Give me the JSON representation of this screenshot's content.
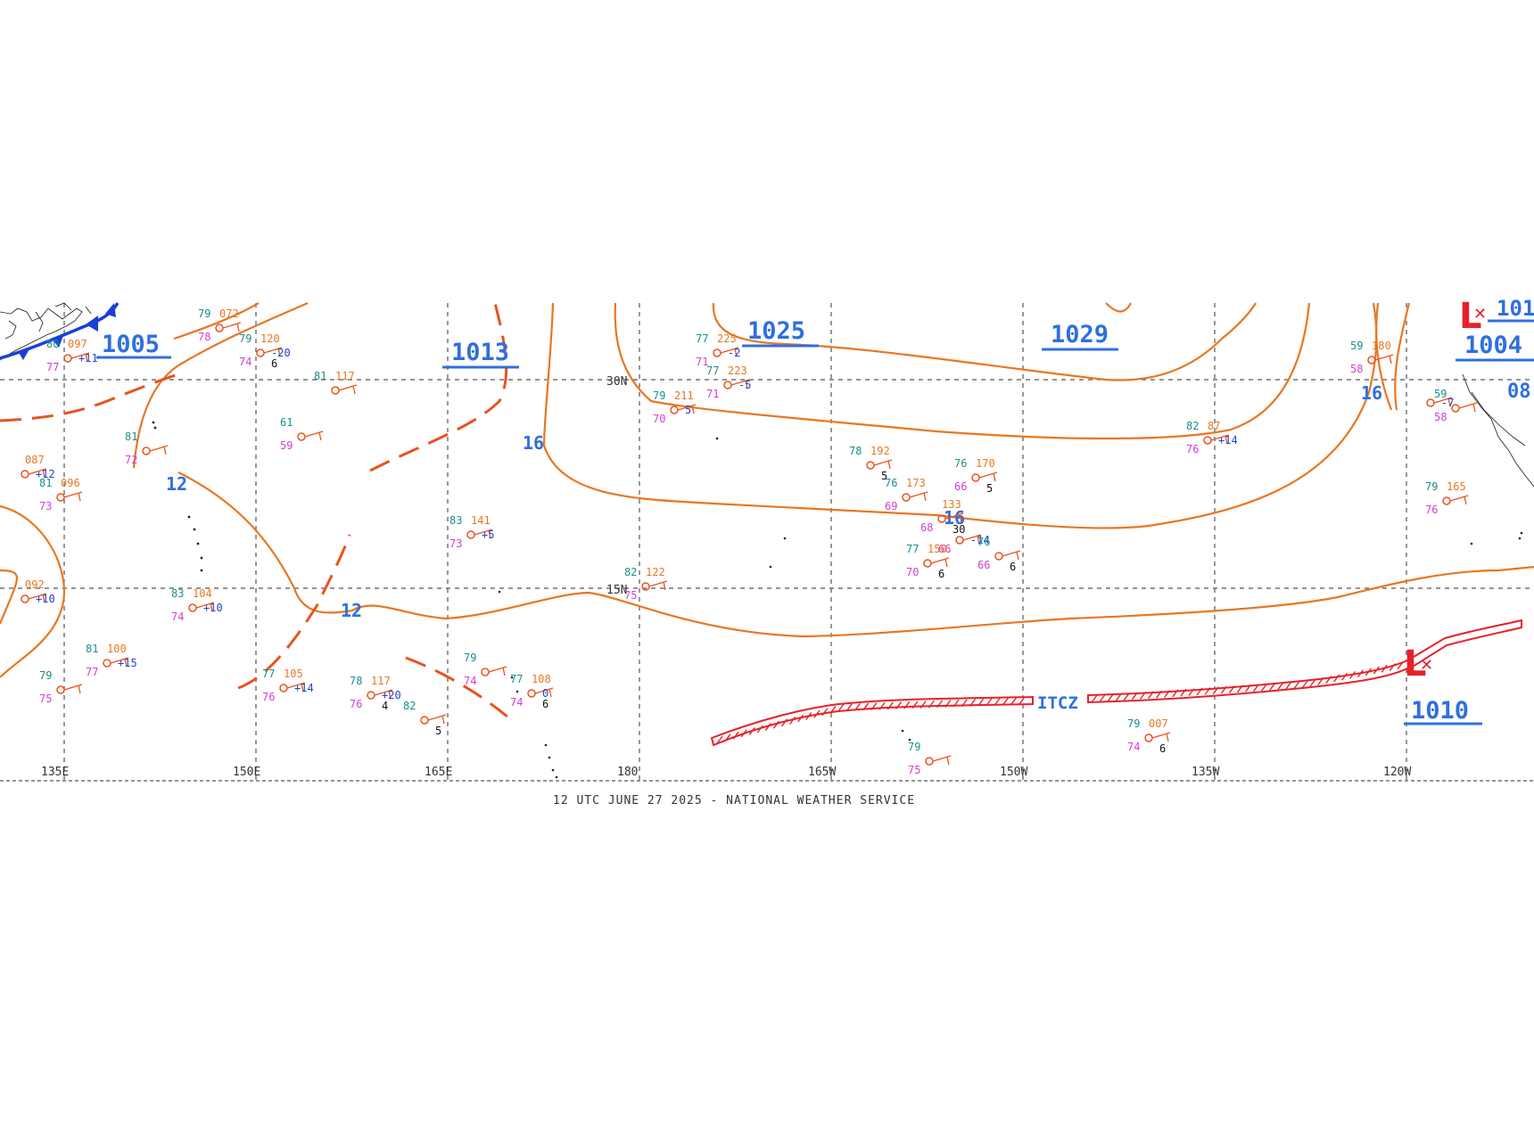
{
  "footer_text": "12 UTC JUNE 27 2025 - NATIONAL WEATHER SERVICE",
  "longitude_labels": [
    "135E",
    "150E",
    "165E",
    "180",
    "165W",
    "150W",
    "135W",
    "120W"
  ],
  "latitude_labels": [
    "30N",
    "15N"
  ],
  "pressure_centers": [
    "1005",
    "1013",
    "1025",
    "1029",
    "1004",
    "1010"
  ],
  "partial_centers": [
    "101",
    "08"
  ],
  "isobar_labels": [
    "12",
    "12",
    "16",
    "16",
    "16",
    "16"
  ],
  "front_label": "ITCZ",
  "low_symbol": "L",
  "colors": {
    "isobar": "#e87722",
    "pressure_label": "#2f6fe0",
    "itcz": "#e8202a",
    "cold_front": "#1a3fd6",
    "grid": "#555555"
  },
  "stations": [
    {
      "t": "79",
      "p": "072",
      "d": "78"
    },
    {
      "t": "79",
      "p": "120",
      "d": "74",
      "v": "6",
      "c": "-20"
    },
    {
      "t": "80",
      "p": "097",
      "d": "77",
      "c": "+11"
    },
    {
      "t": "81",
      "p": "117"
    },
    {
      "t": "61",
      "d": "59"
    },
    {
      "t": "81",
      "d": "72"
    },
    {
      "t": "81",
      "p": "096",
      "d": "73"
    },
    {
      "p": "087",
      "c": "+12"
    },
    {
      "t": "83",
      "p": "141",
      "d": "73",
      "c": "+5"
    },
    {
      "t": "83",
      "p": "104",
      "d": "74",
      "c": "+10"
    },
    {
      "t": "81",
      "p": "100",
      "d": "77",
      "c": "+15"
    },
    {
      "p": "092",
      "c": "+10"
    },
    {
      "t": "79",
      "d": "75"
    },
    {
      "t": "77",
      "p": "105",
      "d": "76",
      "c": "+14"
    },
    {
      "t": "78",
      "p": "117",
      "d": "76",
      "v": "4",
      "c": "+20"
    },
    {
      "t": "82",
      "v": "5"
    },
    {
      "t": "79",
      "d": "74"
    },
    {
      "t": "77",
      "p": "108",
      "d": "74",
      "v": "6",
      "c": "0"
    },
    {
      "t": "77",
      "p": "225",
      "d": "71",
      "c": "-2"
    },
    {
      "t": "77",
      "p": "223",
      "d": "71",
      "c": "-5"
    },
    {
      "t": "79",
      "p": "211",
      "d": "70",
      "c": "5"
    },
    {
      "t": "82",
      "p": "122",
      "d": "75"
    },
    {
      "t": "78",
      "p": "192",
      "v": "5"
    },
    {
      "t": "76",
      "p": "173",
      "d": "69"
    },
    {
      "p": "133",
      "d": "68",
      "v": "30"
    },
    {
      "t": "76",
      "p": "170",
      "d": "66",
      "v": "5"
    },
    {
      "d": "66",
      "c": "-14"
    },
    {
      "t": "77",
      "p": "150",
      "d": "70",
      "v": "6"
    },
    {
      "t": "76",
      "d": "66",
      "v": "6"
    },
    {
      "t": "82",
      "p": "87",
      "d": "76",
      "c": "+14"
    },
    {
      "t": "79",
      "p": "007",
      "d": "74",
      "v": "6"
    },
    {
      "t": "79",
      "d": "75"
    },
    {
      "t": "59",
      "p": "180",
      "d": "58"
    },
    {
      "t": "79",
      "p": "165",
      "d": "76"
    },
    {
      "t": "59",
      "d": "58"
    },
    {
      "c": "-7"
    }
  ]
}
